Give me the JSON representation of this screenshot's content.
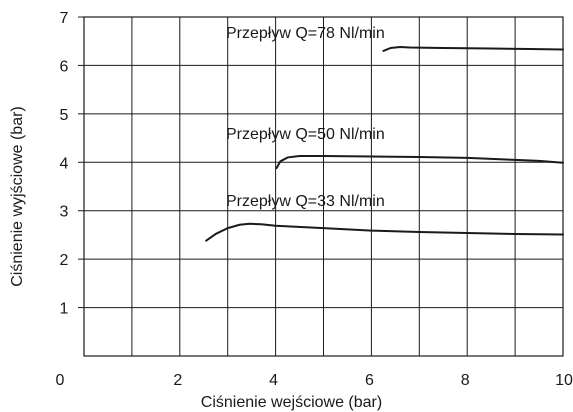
{
  "chart_data": {
    "type": "line",
    "title": "",
    "xlabel": "Ciśnienie wejściowe (bar)",
    "ylabel": "Ciśnienie wyjściowe (bar)",
    "xlim": [
      0,
      10
    ],
    "ylim": [
      0,
      7
    ],
    "x_ticks": [
      0,
      2,
      4,
      6,
      8,
      10
    ],
    "y_ticks": [
      1,
      2,
      3,
      4,
      5,
      6,
      7
    ],
    "grid": true,
    "legend": "none",
    "series": [
      {
        "name": "Przepływ Q=78 Nl/min",
        "x": [
          6.25,
          6.4,
          6.6,
          6.8,
          7.5,
          8.5,
          9.3,
          10.0
        ],
        "y": [
          6.3,
          6.36,
          6.38,
          6.37,
          6.36,
          6.35,
          6.34,
          6.33
        ]
      },
      {
        "name": "Przepływ Q=50 Nl/min",
        "x": [
          4.02,
          4.1,
          4.25,
          4.5,
          5.0,
          6.0,
          7.0,
          8.0,
          9.0,
          9.5,
          10.0
        ],
        "y": [
          3.88,
          4.02,
          4.1,
          4.13,
          4.13,
          4.12,
          4.11,
          4.09,
          4.05,
          4.03,
          3.99
        ]
      },
      {
        "name": "Przepływ Q=33 Nl/min",
        "x": [
          2.55,
          2.75,
          3.0,
          3.25,
          3.45,
          3.7,
          4.0,
          5.0,
          6.0,
          7.0,
          8.0,
          9.0,
          10.0
        ],
        "y": [
          2.38,
          2.52,
          2.64,
          2.71,
          2.73,
          2.72,
          2.69,
          2.64,
          2.59,
          2.56,
          2.54,
          2.52,
          2.51
        ]
      }
    ]
  }
}
